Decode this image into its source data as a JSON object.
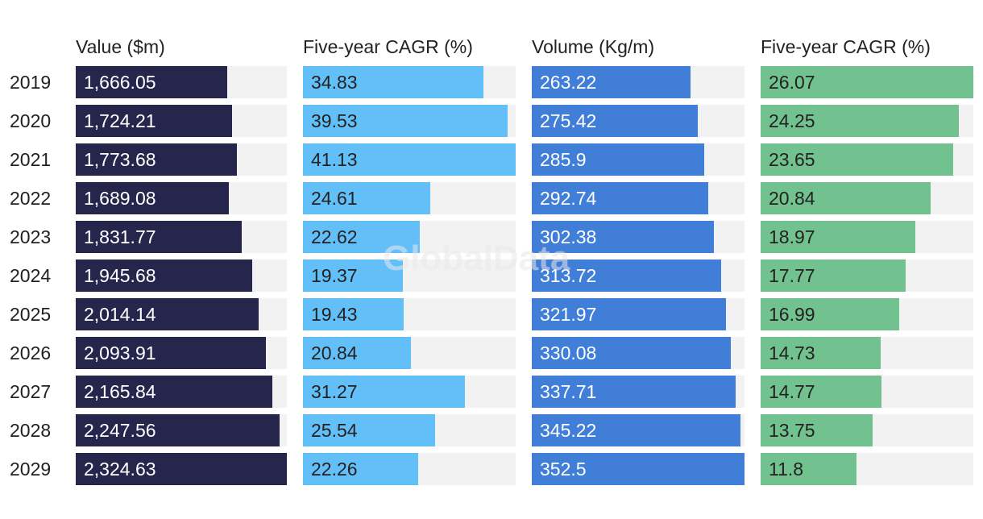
{
  "watermark": "GlobalData",
  "chart_data": {
    "type": "bar",
    "orientation": "horizontal",
    "categories": [
      "2019",
      "2020",
      "2021",
      "2022",
      "2023",
      "2024",
      "2025",
      "2026",
      "2027",
      "2028",
      "2029"
    ],
    "series": [
      {
        "name": "Value ($m)",
        "color": "#26264d",
        "text_color": "#ffffff",
        "values": [
          1666.05,
          1724.21,
          1773.68,
          1689.08,
          1831.77,
          1945.68,
          2014.14,
          2093.91,
          2165.84,
          2247.56,
          2324.63
        ],
        "labels": [
          "1,666.05",
          "1,724.21",
          "1,773.68",
          "1,689.08",
          "1,831.77",
          "1,945.68",
          "2,014.14",
          "2,093.91",
          "2,165.84",
          "2,247.56",
          "2,324.63"
        ]
      },
      {
        "name": "Five-year CAGR (%)",
        "color": "#62bff7",
        "text_color": "#222222",
        "values": [
          34.83,
          39.53,
          41.13,
          24.61,
          22.62,
          19.37,
          19.43,
          20.84,
          31.27,
          25.54,
          22.26
        ],
        "labels": [
          "34.83",
          "39.53",
          "41.13",
          "24.61",
          "22.62",
          "19.37",
          "19.43",
          "20.84",
          "31.27",
          "25.54",
          "22.26"
        ]
      },
      {
        "name": "Volume (Kg/m)",
        "color": "#417ed7",
        "text_color": "#ffffff",
        "values": [
          263.22,
          275.42,
          285.9,
          292.74,
          302.38,
          313.72,
          321.97,
          330.08,
          337.71,
          345.22,
          352.5
        ],
        "labels": [
          "263.22",
          "275.42",
          "285.9",
          "292.74",
          "302.38",
          "313.72",
          "321.97",
          "330.08",
          "337.71",
          "345.22",
          "352.5"
        ]
      },
      {
        "name": "Five-year CAGR (%)",
        "color": "#72c28f",
        "text_color": "#222222",
        "values": [
          26.07,
          24.25,
          23.65,
          20.84,
          18.97,
          17.77,
          16.99,
          14.73,
          14.77,
          13.75,
          11.8
        ],
        "labels": [
          "26.07",
          "24.25",
          "23.65",
          "20.84",
          "18.97",
          "17.77",
          "16.99",
          "14.73",
          "14.77",
          "13.75",
          "11.8"
        ]
      }
    ]
  }
}
